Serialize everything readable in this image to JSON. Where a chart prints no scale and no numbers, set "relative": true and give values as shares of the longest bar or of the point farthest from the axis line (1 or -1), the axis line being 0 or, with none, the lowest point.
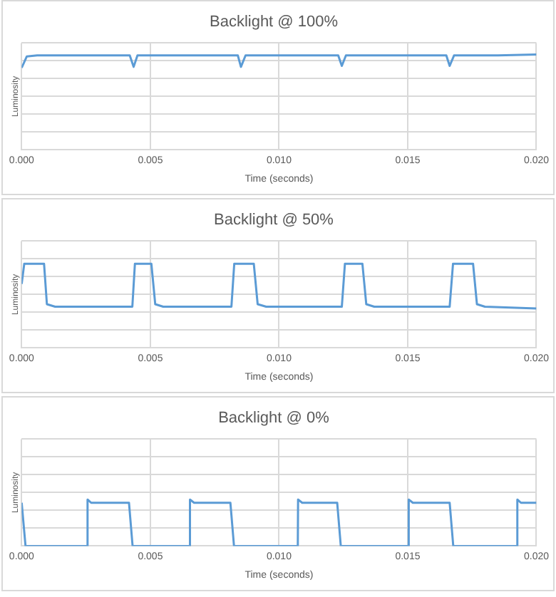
{
  "chart_data": [
    {
      "type": "line",
      "title": "Backlight @ 100%",
      "xlabel": "Time (seconds)",
      "ylabel": "Luminosity",
      "relative": true,
      "grid": true,
      "legend": false,
      "marker": "none",
      "line_style": "solid",
      "tick_labels": "x",
      "xlim": [
        0,
        0.02
      ],
      "xticks": [
        {
          "value": 0,
          "label": "0.000"
        },
        {
          "value": 0.005,
          "label": "0.005"
        },
        {
          "value": 0.01,
          "label": "0.010"
        },
        {
          "value": 0.015,
          "label": "0.015"
        },
        {
          "value": 0.02,
          "label": "0.020"
        }
      ],
      "series": [
        {
          "color": "#5b9bd5",
          "x": [
            0,
            0.0002,
            0.0006,
            0.002,
            0.0042,
            0.00435,
            0.0045,
            0.0065,
            0.0084,
            0.00852,
            0.0087,
            0.0105,
            0.0123,
            0.01244,
            0.0126,
            0.0145,
            0.0165,
            0.01663,
            0.0168,
            0.0185,
            0.02
          ],
          "values": [
            0.86,
            0.98,
            0.99,
            0.99,
            0.99,
            0.87,
            0.99,
            0.99,
            0.99,
            0.87,
            0.99,
            0.99,
            0.99,
            0.88,
            0.99,
            0.99,
            0.99,
            0.88,
            0.99,
            0.99,
            1.0
          ]
        }
      ]
    },
    {
      "type": "line",
      "title": "Backlight @ 50%",
      "xlabel": "Time (seconds)",
      "ylabel": "Luminosity",
      "relative": true,
      "grid": true,
      "legend": false,
      "marker": "none",
      "line_style": "solid",
      "tick_labels": "x",
      "xlim": [
        0,
        0.02
      ],
      "xticks": [
        {
          "value": 0,
          "label": "0.000"
        },
        {
          "value": 0.005,
          "label": "0.005"
        },
        {
          "value": 0.01,
          "label": "0.010"
        },
        {
          "value": 0.015,
          "label": "0.015"
        },
        {
          "value": 0.02,
          "label": "0.020"
        }
      ],
      "series": [
        {
          "color": "#5b9bd5",
          "x": [
            0,
            0.0001,
            0.00087,
            0.00098,
            0.0013,
            0.0043,
            0.0044,
            0.00504,
            0.00519,
            0.0055,
            0.00815,
            0.00826,
            0.00902,
            0.00917,
            0.0095,
            0.01244,
            0.01256,
            0.01324,
            0.01339,
            0.0137,
            0.01663,
            0.01676,
            0.01754,
            0.01769,
            0.018,
            0.02
          ],
          "values": [
            0.76,
            1,
            1,
            0.52,
            0.49,
            0.49,
            1,
            1,
            0.52,
            0.49,
            0.49,
            1,
            1,
            0.52,
            0.49,
            0.49,
            1,
            1,
            0.52,
            0.49,
            0.49,
            1,
            1,
            0.52,
            0.49,
            0.47
          ]
        }
      ]
    },
    {
      "type": "line",
      "title": "Backlight @ 0%",
      "xlabel": "Time (seconds)",
      "ylabel": "Luminosity",
      "relative": true,
      "grid": true,
      "legend": false,
      "marker": "none",
      "line_style": "solid",
      "tick_labels": "x",
      "xlim": [
        0,
        0.02
      ],
      "xticks": [
        {
          "value": 0,
          "label": "0.000"
        },
        {
          "value": 0.005,
          "label": "0.005"
        },
        {
          "value": 0.01,
          "label": "0.010"
        },
        {
          "value": 0.015,
          "label": "0.015"
        },
        {
          "value": 0.02,
          "label": "0.020"
        }
      ],
      "series": [
        {
          "color": "#5b9bd5",
          "x": [
            0,
            0.00015,
            0.00255,
            0.00256,
            0.0027,
            0.00417,
            0.00431,
            0.00653,
            0.00654,
            0.0067,
            0.00811,
            0.00825,
            0.01073,
            0.01074,
            0.0109,
            0.01226,
            0.0124,
            0.01503,
            0.01504,
            0.0152,
            0.01663,
            0.01677,
            0.01925,
            0.01926,
            0.0194,
            0.02
          ],
          "values": [
            0.93,
            0,
            0,
            1,
            0.93,
            0.93,
            0,
            0,
            1,
            0.93,
            0.93,
            0,
            0,
            1,
            0.93,
            0.93,
            0,
            0,
            1,
            0.93,
            0.93,
            0,
            0,
            1,
            0.93,
            0.93
          ]
        }
      ]
    }
  ]
}
